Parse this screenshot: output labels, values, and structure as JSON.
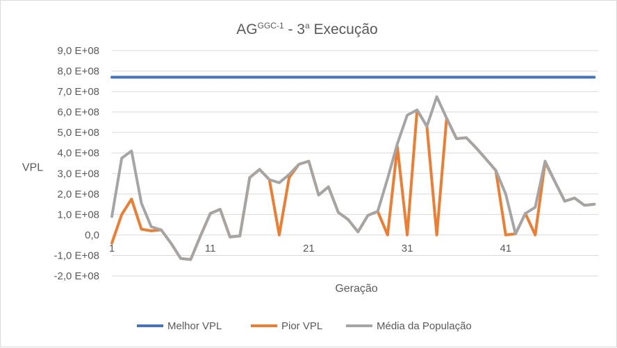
{
  "chart_data": {
    "type": "line",
    "title_main": "AG",
    "title_sup": "GGC-1",
    "title_rest": " - 3",
    "title_ordinal": "a",
    "title_end": " Execução",
    "xlabel": "Geração",
    "ylabel": "VPL",
    "ylim": [
      -200000000,
      900000000
    ],
    "y_tick_labels": [
      "9,0 E+08",
      "8,0 E+08",
      "7,0 E+08",
      "6,0 E+08",
      "5,0 E+08",
      "4,0 E+08",
      "3,0 E+08",
      "2,0 E+08",
      "1,0 E+08",
      "0,0",
      "-1,0 E+08",
      "-2,0 E+08"
    ],
    "y_tick_values": [
      900000000,
      800000000,
      700000000,
      600000000,
      500000000,
      400000000,
      300000000,
      200000000,
      100000000,
      0,
      -100000000,
      -200000000
    ],
    "x_tick_labels": [
      "1",
      "11",
      "21",
      "31",
      "41"
    ],
    "x_tick_values": [
      1,
      11,
      21,
      31,
      41
    ],
    "x": [
      1,
      2,
      3,
      4,
      5,
      6,
      7,
      8,
      9,
      10,
      11,
      12,
      13,
      14,
      15,
      16,
      17,
      18,
      19,
      20,
      21,
      22,
      23,
      24,
      25,
      26,
      27,
      28,
      29,
      30,
      31,
      32,
      33,
      34,
      35,
      36,
      37,
      38,
      39,
      40,
      41,
      42,
      43,
      44,
      45,
      46,
      47,
      48,
      49,
      50
    ],
    "series": [
      {
        "name": "Melhor VPL",
        "color": "#4472c4",
        "values": [
          770000000,
          770000000,
          770000000,
          770000000,
          770000000,
          770000000,
          770000000,
          770000000,
          770000000,
          770000000,
          770000000,
          770000000,
          770000000,
          770000000,
          770000000,
          770000000,
          770000000,
          770000000,
          770000000,
          770000000,
          770000000,
          770000000,
          770000000,
          770000000,
          770000000,
          770000000,
          770000000,
          770000000,
          770000000,
          770000000,
          770000000,
          770000000,
          770000000,
          770000000,
          770000000,
          770000000,
          770000000,
          770000000,
          770000000,
          770000000,
          770000000,
          770000000,
          770000000,
          770000000,
          770000000,
          770000000,
          770000000,
          770000000,
          770000000,
          770000000
        ]
      },
      {
        "name": "Pior VPL",
        "color": "#ed7d31",
        "values": [
          -40000000,
          100000000,
          175000000,
          28000000,
          20000000,
          25000000,
          -40000000,
          -115000000,
          -120000000,
          -5000000,
          105000000,
          125000000,
          -10000000,
          -5000000,
          280000000,
          320000000,
          270000000,
          0,
          280000000,
          345000000,
          360000000,
          195000000,
          235000000,
          110000000,
          75000000,
          15000000,
          95000000,
          115000000,
          0,
          430000000,
          0,
          610000000,
          530000000,
          0,
          570000000,
          470000000,
          475000000,
          425000000,
          370000000,
          315000000,
          0,
          5000000,
          105000000,
          0,
          355000000,
          260000000,
          165000000,
          180000000,
          145000000,
          150000000
        ]
      },
      {
        "name": "Média da População",
        "color": "#a5a5a5",
        "values": [
          90000000,
          375000000,
          410000000,
          155000000,
          40000000,
          25000000,
          -40000000,
          -115000000,
          -120000000,
          -5000000,
          105000000,
          125000000,
          -10000000,
          -5000000,
          280000000,
          320000000,
          270000000,
          255000000,
          295000000,
          345000000,
          360000000,
          195000000,
          235000000,
          110000000,
          75000000,
          15000000,
          95000000,
          115000000,
          275000000,
          445000000,
          585000000,
          610000000,
          530000000,
          675000000,
          570000000,
          470000000,
          475000000,
          425000000,
          370000000,
          315000000,
          200000000,
          5000000,
          105000000,
          135000000,
          360000000,
          260000000,
          165000000,
          180000000,
          145000000,
          150000000
        ]
      }
    ],
    "grid": true,
    "legend_position": "bottom"
  }
}
